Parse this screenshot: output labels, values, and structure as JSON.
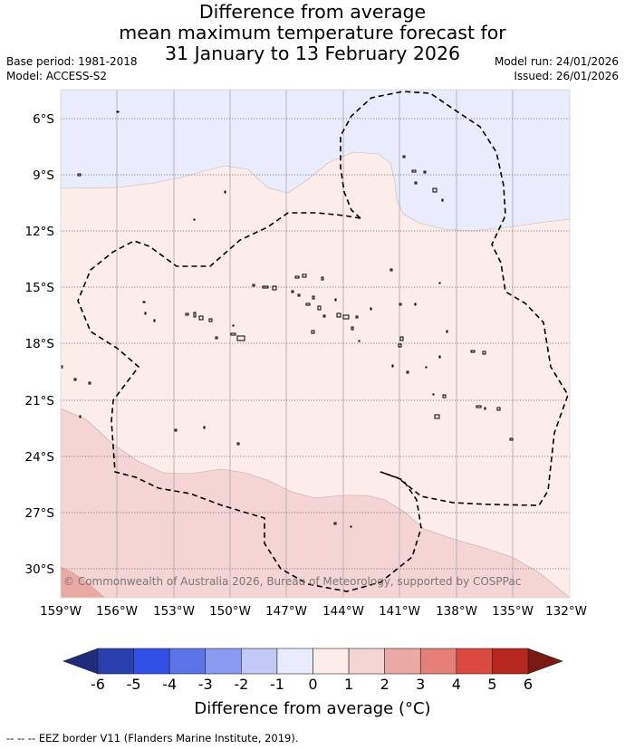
{
  "title": {
    "line1": "Difference from average",
    "line2": "mean maximum temperature forecast for",
    "line3": "31 January to 13 February 2026"
  },
  "meta": {
    "base_period": "Base period: 1981-2018",
    "model": "Model: ACCESS-S2",
    "model_run": "Model run: 24/01/2026",
    "issued": "Issued: 26/01/2026"
  },
  "map": {
    "lat_labels": [
      "6°S",
      "9°S",
      "12°S",
      "15°S",
      "18°S",
      "21°S",
      "24°S",
      "27°S",
      "30°S"
    ],
    "lon_labels": [
      "159°W",
      "156°W",
      "153°W",
      "150°W",
      "147°W",
      "144°W",
      "141°W",
      "138°W",
      "135°W",
      "132°W"
    ],
    "copyright": "© Commonwealth of Australia 2026, Bureau of Meteorology, supported by COSPPac",
    "region_colors": {
      "cool_minus1_0": "#e9ecfc",
      "warm_0_1": "#fcecea",
      "warm_1_2": "#f5d5d3",
      "warm_2_3": "#eba9a3"
    }
  },
  "colorbar": {
    "ticks": [
      "-6",
      "-5",
      "-4",
      "-3",
      "-2",
      "-1",
      "0",
      "1",
      "2",
      "3",
      "4",
      "5",
      "6"
    ],
    "colors": [
      "#2a3fae",
      "#3350e6",
      "#5d73e8",
      "#8a9af0",
      "#c1c9f6",
      "#e9ecfc",
      "#fcecea",
      "#f5d5d3",
      "#eba9a3",
      "#e57f78",
      "#da4a40",
      "#b5271f"
    ],
    "under_color": "#1f2c7c",
    "over_color": "#7b1a15",
    "label": "Difference from average (°C)"
  },
  "footnote": "-- -- -- EEZ border V11 (Flanders Marine Institute, 2019)."
}
